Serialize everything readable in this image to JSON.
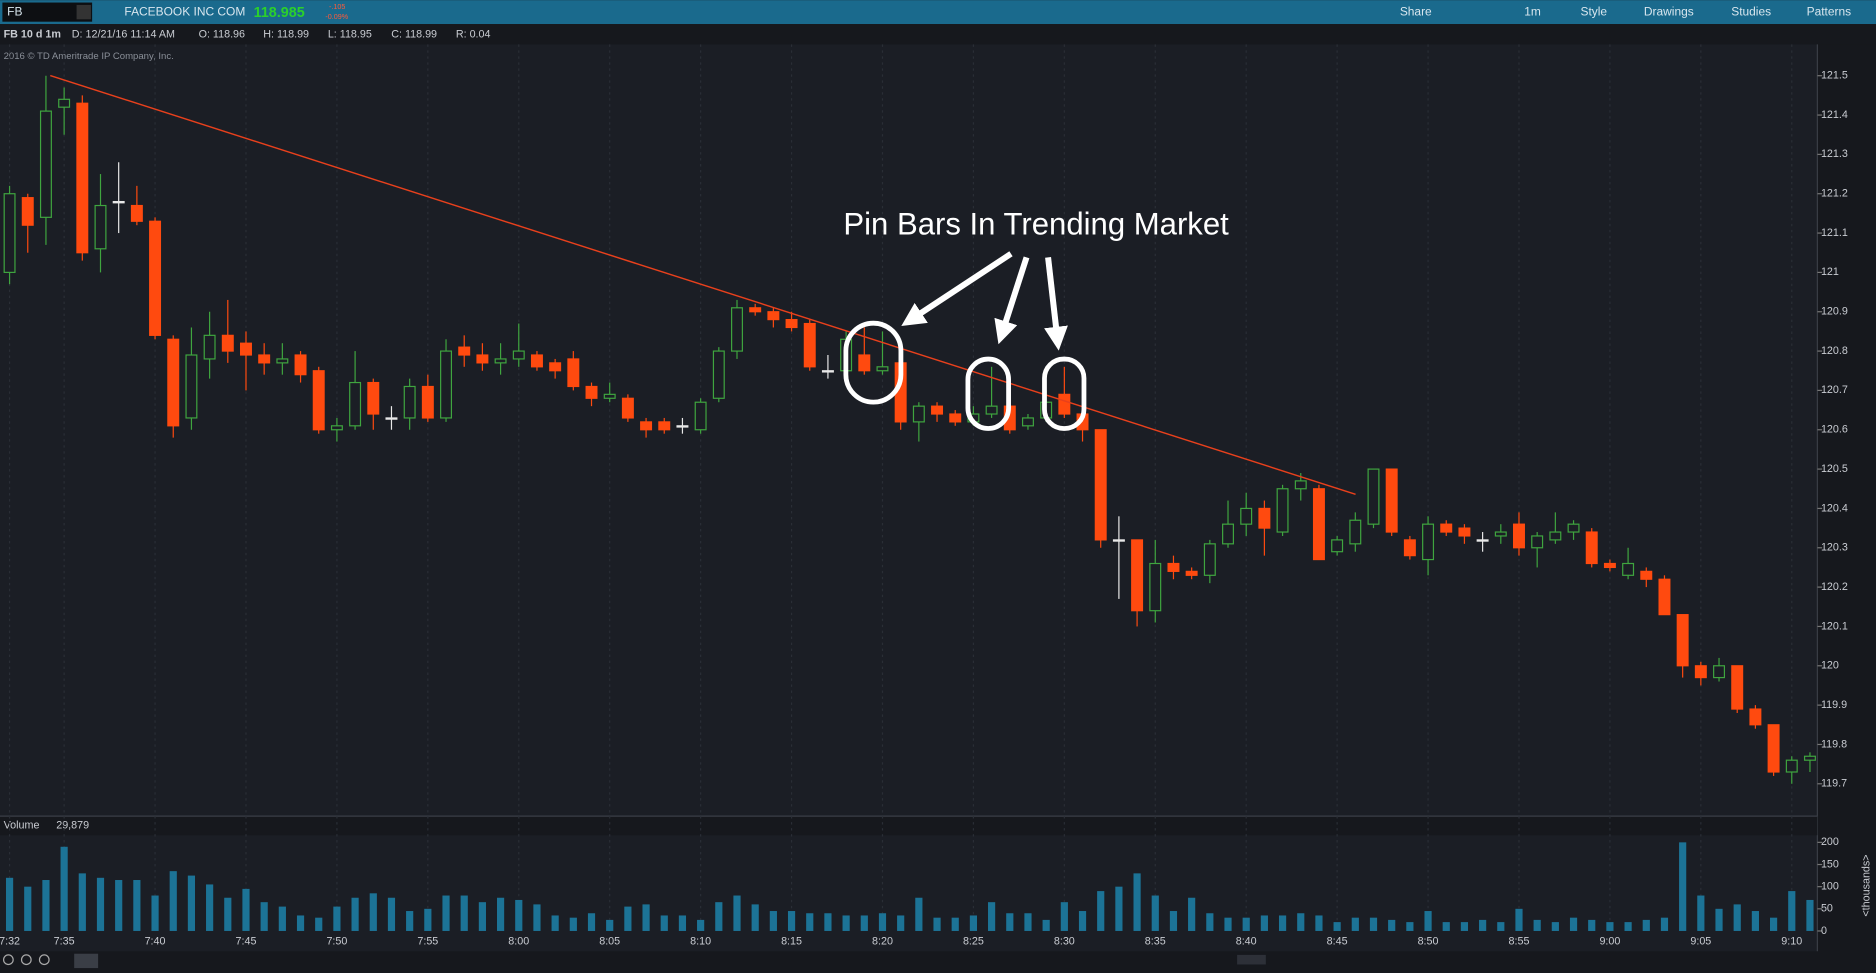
{
  "header": {
    "symbol": "FB",
    "company": "FACEBOOK INC COM",
    "last": "118.985",
    "change": "-.105",
    "change_pct": "-0.09%",
    "buttons": [
      "Share",
      "1m",
      "Style",
      "Drawings",
      "Studies",
      "Patterns"
    ],
    "study": "FB 10 d 1m",
    "fields": [
      "D: 12/21/16 11:14 AM",
      "O: 118.96",
      "H: 118.99",
      "L: 118.95",
      "C: 118.99",
      "R: 0.04"
    ],
    "copyright": "2016 © TD Ameritrade IP Company, Inc.",
    "volume_title": "Volume",
    "volume_last": "29,879"
  },
  "chart_data": {
    "type": "candlestick",
    "annotation": "Pin Bars In Trending Market",
    "categories": [
      "7:32",
      null,
      null,
      "7:35",
      null,
      null,
      null,
      null,
      "7:40",
      null,
      null,
      null,
      null,
      "7:45",
      null,
      null,
      null,
      null,
      "7:50",
      null,
      null,
      null,
      null,
      "7:55",
      null,
      null,
      null,
      null,
      "8:00",
      null,
      null,
      null,
      null,
      "8:05",
      null,
      null,
      null,
      null,
      "8:10",
      null,
      null,
      null,
      null,
      "8:15",
      null,
      null,
      null,
      null,
      "8:20",
      null,
      null,
      null,
      null,
      "8:25",
      null,
      null,
      null,
      null,
      "8:30",
      null,
      null,
      null,
      null,
      "8:35",
      null,
      null,
      null,
      null,
      "8:40",
      null,
      null,
      null,
      null,
      "8:45",
      null,
      null,
      null,
      null,
      "8:50",
      null,
      null,
      null,
      null,
      "8:55",
      null,
      null,
      null,
      null,
      "9:00",
      null,
      null,
      null,
      null,
      "9:05",
      null,
      null,
      null,
      null,
      "9:10",
      null
    ],
    "open": [
      121.0,
      121.19,
      121.14,
      121.42,
      121.43,
      121.06,
      121.18,
      121.17,
      121.13,
      120.83,
      120.63,
      120.78,
      120.84,
      120.82,
      120.79,
      120.77,
      120.79,
      120.75,
      120.6,
      120.61,
      120.72,
      120.63,
      120.63,
      120.71,
      120.63,
      120.81,
      120.79,
      120.77,
      120.78,
      120.79,
      120.77,
      120.78,
      120.71,
      120.68,
      120.68,
      120.62,
      120.62,
      120.61,
      120.6,
      120.68,
      120.8,
      120.91,
      120.9,
      120.88,
      120.87,
      120.75,
      120.75,
      120.79,
      120.75,
      120.77,
      120.62,
      120.66,
      120.64,
      120.62,
      120.64,
      120.66,
      120.61,
      120.63,
      120.69,
      120.64,
      120.6,
      120.32,
      120.32,
      120.14,
      120.26,
      120.24,
      120.23,
      120.31,
      120.36,
      120.4,
      120.34,
      120.45,
      120.45,
      120.29,
      120.31,
      120.36,
      120.5,
      120.32,
      120.27,
      120.36,
      120.35,
      120.32,
      120.33,
      120.36,
      120.3,
      120.32,
      120.34,
      120.34,
      120.26,
      120.23,
      120.24,
      120.22,
      120.13,
      120.0,
      119.97,
      120.0,
      119.89,
      119.85,
      119.73,
      119.76
    ],
    "high": [
      121.22,
      121.2,
      121.5,
      121.47,
      121.45,
      121.25,
      121.28,
      121.22,
      121.14,
      120.84,
      120.86,
      120.9,
      120.93,
      120.85,
      120.82,
      120.82,
      120.8,
      120.76,
      120.63,
      120.8,
      120.73,
      120.66,
      120.73,
      120.74,
      120.83,
      120.84,
      120.82,
      120.82,
      120.87,
      120.8,
      120.78,
      120.8,
      120.72,
      120.72,
      120.69,
      120.63,
      120.63,
      120.63,
      120.68,
      120.81,
      120.93,
      120.92,
      120.91,
      120.9,
      120.88,
      120.79,
      120.85,
      120.86,
      120.85,
      120.78,
      120.67,
      120.67,
      120.65,
      120.66,
      120.76,
      120.67,
      120.64,
      120.7,
      120.76,
      120.65,
      120.6,
      120.38,
      120.32,
      120.32,
      120.28,
      120.25,
      120.32,
      120.42,
      120.44,
      120.42,
      120.46,
      120.49,
      120.46,
      120.33,
      120.39,
      120.5,
      120.5,
      120.33,
      120.38,
      120.37,
      120.36,
      120.34,
      120.36,
      120.39,
      120.34,
      120.39,
      120.37,
      120.35,
      120.27,
      120.3,
      120.25,
      120.23,
      120.13,
      120.01,
      120.02,
      120.0,
      119.9,
      119.85,
      119.77,
      119.78
    ],
    "low": [
      120.97,
      121.05,
      121.07,
      121.35,
      121.03,
      121.0,
      121.1,
      121.12,
      120.83,
      120.58,
      120.6,
      120.73,
      120.77,
      120.7,
      120.74,
      120.74,
      120.72,
      120.59,
      120.57,
      120.6,
      120.6,
      120.6,
      120.6,
      120.62,
      120.62,
      120.76,
      120.75,
      120.74,
      120.76,
      120.75,
      120.73,
      120.7,
      120.66,
      120.67,
      120.62,
      120.58,
      120.59,
      120.59,
      120.59,
      120.67,
      120.78,
      120.89,
      120.86,
      120.85,
      120.75,
      120.73,
      120.73,
      120.74,
      120.74,
      120.6,
      120.57,
      120.62,
      120.61,
      120.61,
      120.63,
      120.59,
      120.6,
      120.62,
      120.63,
      120.57,
      120.3,
      120.17,
      120.1,
      120.11,
      120.22,
      120.22,
      120.21,
      120.3,
      120.33,
      120.28,
      120.33,
      120.42,
      120.27,
      120.28,
      120.29,
      120.35,
      120.33,
      120.27,
      120.23,
      120.33,
      120.31,
      120.29,
      120.31,
      120.28,
      120.25,
      120.31,
      120.32,
      120.25,
      120.24,
      120.22,
      120.2,
      120.13,
      119.97,
      119.95,
      119.96,
      119.88,
      119.84,
      119.72,
      119.7,
      119.73
    ],
    "close": [
      121.2,
      121.12,
      121.41,
      121.44,
      121.05,
      121.17,
      121.18,
      121.13,
      120.84,
      120.61,
      120.79,
      120.84,
      120.8,
      120.79,
      120.77,
      120.78,
      120.74,
      120.6,
      120.61,
      120.72,
      120.64,
      120.63,
      120.71,
      120.63,
      120.8,
      120.79,
      120.77,
      120.78,
      120.8,
      120.76,
      120.75,
      120.71,
      120.68,
      120.69,
      120.63,
      120.6,
      120.6,
      120.61,
      120.67,
      120.8,
      120.91,
      120.9,
      120.88,
      120.86,
      120.76,
      120.75,
      120.83,
      120.75,
      120.76,
      120.62,
      120.66,
      120.64,
      120.62,
      120.64,
      120.66,
      120.6,
      120.63,
      120.67,
      120.64,
      120.6,
      120.32,
      120.32,
      120.14,
      120.26,
      120.24,
      120.23,
      120.31,
      120.36,
      120.4,
      120.35,
      120.45,
      120.47,
      120.27,
      120.32,
      120.37,
      120.5,
      120.34,
      120.28,
      120.36,
      120.34,
      120.33,
      120.32,
      120.34,
      120.3,
      120.33,
      120.34,
      120.36,
      120.26,
      120.25,
      120.26,
      120.22,
      120.13,
      120.0,
      119.97,
      120.0,
      119.89,
      119.85,
      119.73,
      119.76,
      119.77
    ],
    "volume": [
      120,
      100,
      115,
      190,
      130,
      120,
      115,
      115,
      80,
      135,
      125,
      105,
      75,
      95,
      65,
      55,
      35,
      30,
      55,
      75,
      85,
      75,
      45,
      50,
      80,
      80,
      65,
      75,
      70,
      60,
      35,
      30,
      40,
      25,
      55,
      60,
      35,
      35,
      25,
      65,
      80,
      60,
      45,
      45,
      40,
      40,
      35,
      35,
      40,
      35,
      75,
      30,
      30,
      35,
      65,
      40,
      40,
      25,
      65,
      45,
      90,
      100,
      130,
      80,
      45,
      75,
      40,
      30,
      30,
      35,
      35,
      40,
      35,
      20,
      30,
      30,
      25,
      20,
      45,
      20,
      20,
      25,
      20,
      50,
      25,
      20,
      30,
      25,
      20,
      20,
      25,
      30,
      200,
      80,
      50,
      60,
      45,
      30,
      90,
      70
    ],
    "up_color": "#3fa53f",
    "down_color": "#ff4a0f",
    "volume_color": "#1c7396",
    "ylim": [
      119.63,
      121.54
    ],
    "yticks": [
      119.7,
      119.8,
      119.9,
      120,
      120.1,
      120.2,
      120.3,
      120.4,
      120.5,
      120.6,
      120.7,
      120.8,
      120.9,
      121,
      121.1,
      121.2,
      121.3,
      121.4,
      121.5
    ],
    "y2lim": [
      0,
      216
    ],
    "y2ticks": [
      0,
      50,
      100,
      150,
      200
    ],
    "y2label": "<thousands>"
  }
}
